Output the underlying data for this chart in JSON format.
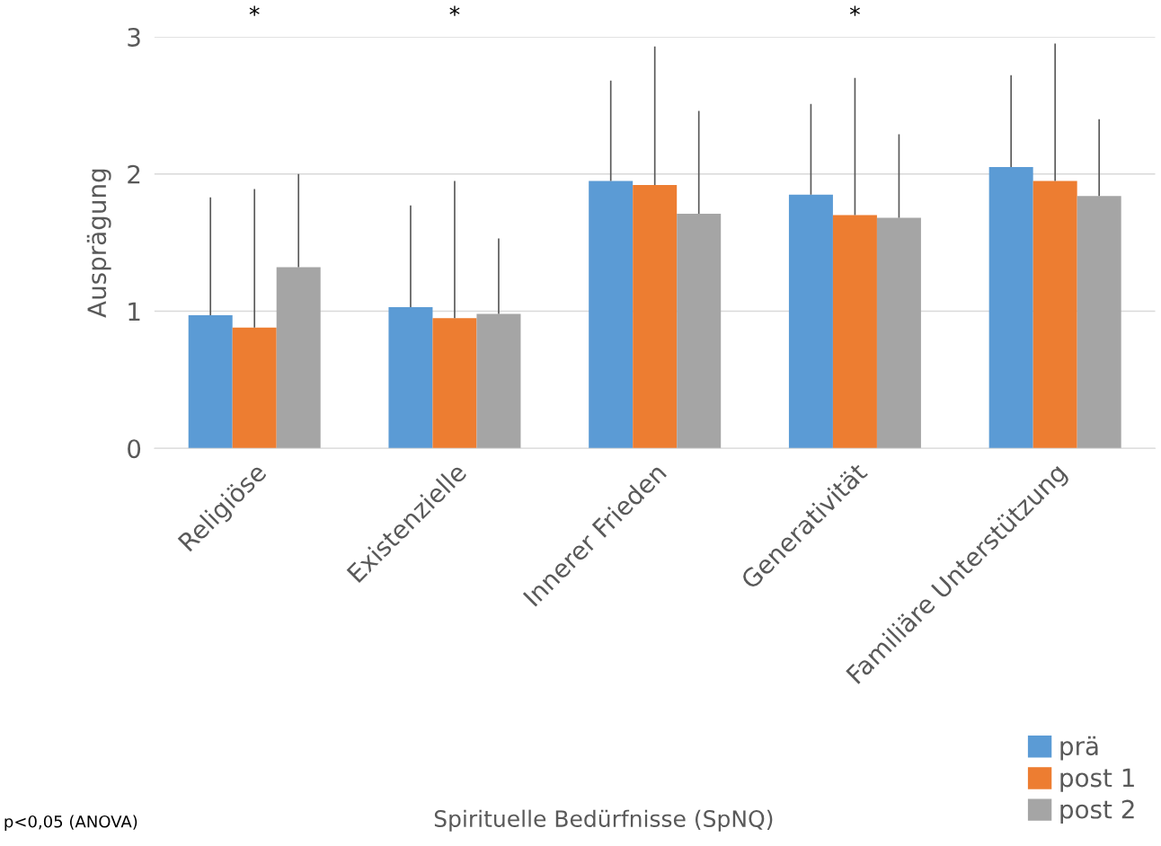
{
  "chart_data": {
    "type": "bar",
    "ylabel": "Ausprägung",
    "categories": [
      "Religiöse",
      "Existenzielle",
      "Innerer Frieden",
      "Generativität",
      "Familiäre Unterstützung"
    ],
    "series": [
      {
        "name": "prä",
        "color": "#5b9bd5",
        "values": [
          0.97,
          1.03,
          1.95,
          1.85,
          2.05
        ],
        "errors": [
          [
            0.97,
            1.83
          ],
          [
            1.03,
            1.77
          ],
          [
            1.95,
            2.68
          ],
          [
            1.85,
            2.51
          ],
          [
            2.05,
            2.72
          ]
        ]
      },
      {
        "name": "post 1",
        "color": "#ed7d31",
        "values": [
          0.88,
          0.95,
          1.92,
          1.7,
          1.95
        ],
        "errors": [
          [
            0.88,
            1.89
          ],
          [
            0.95,
            1.95
          ],
          [
            1.92,
            2.93
          ],
          [
            1.7,
            2.7
          ],
          [
            1.95,
            2.95
          ]
        ]
      },
      {
        "name": "post 2",
        "color": "#a5a5a5",
        "values": [
          1.32,
          0.98,
          1.71,
          1.68,
          1.84
        ],
        "errors": [
          [
            1.32,
            2.0
          ],
          [
            0.98,
            1.53
          ],
          [
            1.71,
            2.46
          ],
          [
            1.68,
            2.29
          ],
          [
            1.84,
            2.4
          ]
        ]
      }
    ],
    "ylim": [
      0,
      3
    ],
    "yticks": [
      0,
      1,
      2,
      3
    ],
    "grid": "y",
    "legend": "bottom right",
    "annotations": [
      "*",
      "*",
      "*",
      "p<0,05 (ANOVA)",
      "Spirituelle Bedürfnisse (SpNQ)"
    ]
  }
}
